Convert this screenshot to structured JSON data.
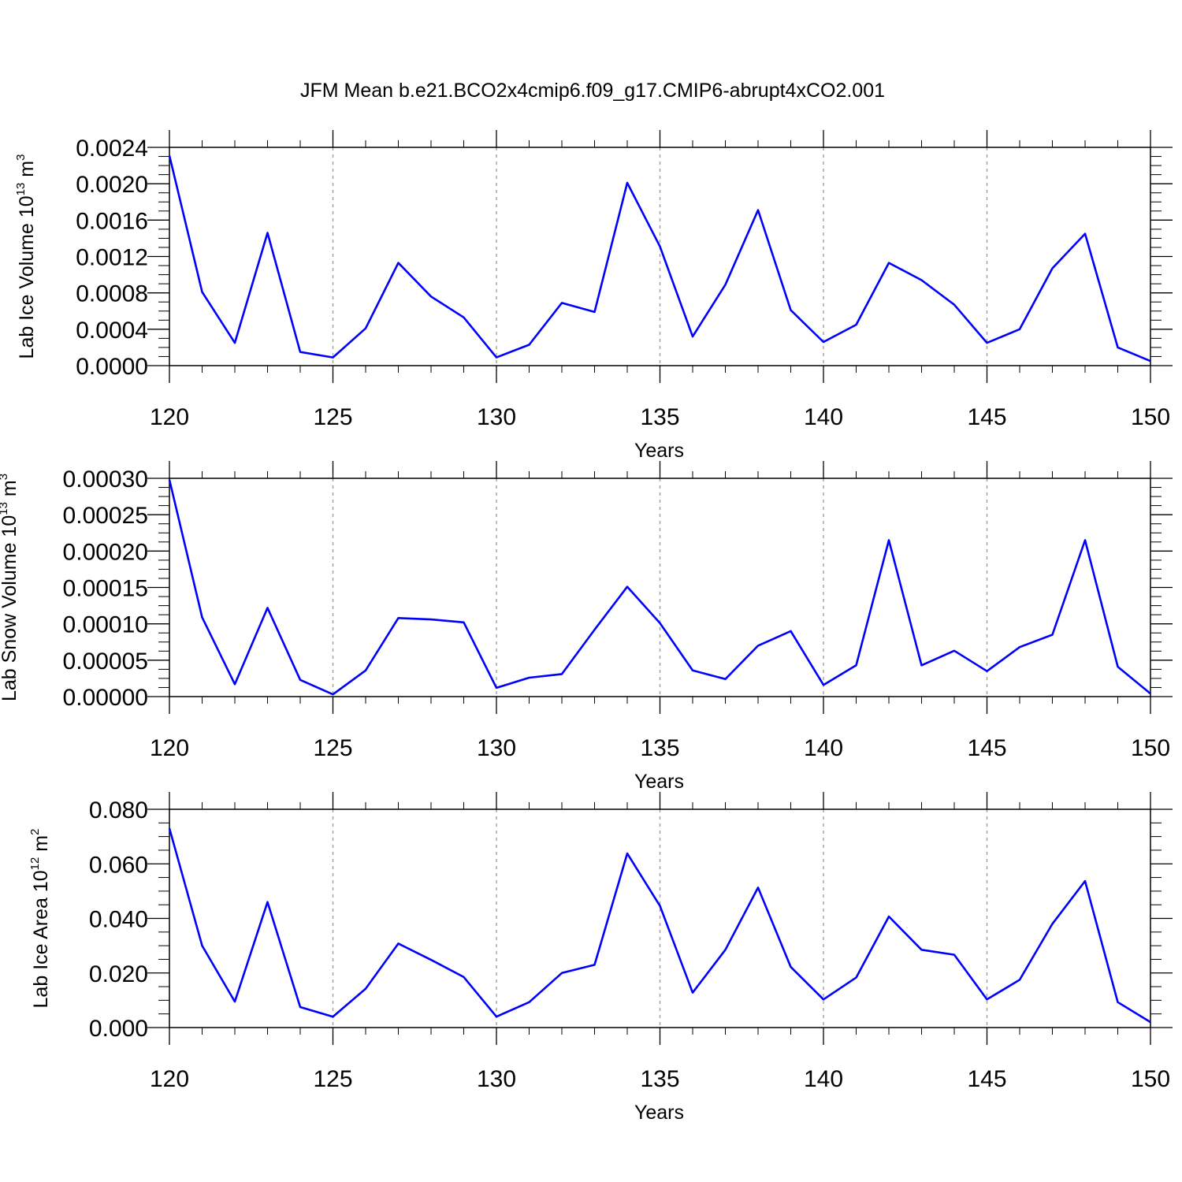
{
  "title": "JFM Mean b.e21.BCO2x4cmip6.f09_g17.CMIP6-abrupt4xCO2.001",
  "colors": {
    "series": "#0000ff",
    "grid": "#999999",
    "axis": "#000000"
  },
  "chart_data": [
    {
      "type": "line",
      "ylabel": {
        "text": "Lab Ice Volume 10",
        "exp": "13",
        "unit": " m",
        "unit_exp": "3"
      },
      "xlabel": "Years",
      "xlim": [
        120,
        150
      ],
      "ylim": [
        0,
        0.0024
      ],
      "xticks": [
        120,
        125,
        130,
        135,
        140,
        145,
        150
      ],
      "yticks": [
        "0.0000",
        "0.0004",
        "0.0008",
        "0.0012",
        "0.0016",
        "0.0020",
        "0.0024"
      ],
      "grid": "vertical dashed at major x ticks",
      "x": [
        120,
        121,
        122,
        123,
        124,
        125,
        126,
        127,
        128,
        129,
        130,
        131,
        132,
        133,
        134,
        135,
        136,
        137,
        138,
        139,
        140,
        141,
        142,
        143,
        144,
        145,
        146,
        147,
        148,
        149,
        150
      ],
      "series": [
        {
          "values": [
            0.00231,
            0.00081,
            0.00025,
            0.00146,
            0.00015,
            9e-05,
            0.00041,
            0.00113,
            0.00076,
            0.00053,
            9e-05,
            0.00023,
            0.00069,
            0.00059,
            0.00201,
            0.00131,
            0.00032,
            0.00089,
            0.00171,
            0.00061,
            0.00026,
            0.00045,
            0.00113,
            0.00094,
            0.00067,
            0.00025,
            0.0004,
            0.00107,
            0.00145,
            0.0002,
            5e-05
          ]
        }
      ]
    },
    {
      "type": "line",
      "ylabel": {
        "text": "Lab Snow Volume 10",
        "exp": "13",
        "unit": " m",
        "unit_exp": "3"
      },
      "xlabel": "Years",
      "xlim": [
        120,
        150
      ],
      "ylim": [
        0,
        0.0003
      ],
      "xticks": [
        120,
        125,
        130,
        135,
        140,
        145,
        150
      ],
      "yticks": [
        "0.00000",
        "0.00005",
        "0.00010",
        "0.00015",
        "0.00020",
        "0.00025",
        "0.00030"
      ],
      "grid": "vertical dashed at major x ticks",
      "x": [
        120,
        121,
        122,
        123,
        124,
        125,
        126,
        127,
        128,
        129,
        130,
        131,
        132,
        133,
        134,
        135,
        136,
        137,
        138,
        139,
        140,
        141,
        142,
        143,
        144,
        145,
        146,
        147,
        148,
        149,
        150
      ],
      "series": [
        {
          "values": [
            0.000298,
            0.000109,
            1.7e-05,
            0.000122,
            2.3e-05,
            3e-06,
            3.6e-05,
            0.000108,
            0.000106,
            0.000102,
            1.2e-05,
            2.6e-05,
            3.1e-05,
            9.2e-05,
            0.000151,
            0.000101,
            3.6e-05,
            2.4e-05,
            7e-05,
            9e-05,
            1.6e-05,
            4.3e-05,
            0.000215,
            4.3e-05,
            6.3e-05,
            3.5e-05,
            6.8e-05,
            8.5e-05,
            0.000215,
            4.1e-05,
            4e-06
          ]
        }
      ]
    },
    {
      "type": "line",
      "ylabel": {
        "text": "Lab Ice Area 10",
        "exp": "12",
        "unit": " m",
        "unit_exp": "2"
      },
      "xlabel": "Years",
      "xlim": [
        120,
        150
      ],
      "ylim": [
        0,
        0.08
      ],
      "xticks": [
        120,
        125,
        130,
        135,
        140,
        145,
        150
      ],
      "yticks": [
        "0.000",
        "0.020",
        "0.040",
        "0.060",
        "0.080"
      ],
      "grid": "vertical dashed at major x ticks",
      "x": [
        120,
        121,
        122,
        123,
        124,
        125,
        126,
        127,
        128,
        129,
        130,
        131,
        132,
        133,
        134,
        135,
        136,
        137,
        138,
        139,
        140,
        141,
        142,
        143,
        144,
        145,
        146,
        147,
        148,
        149,
        150
      ],
      "series": [
        {
          "values": [
            0.073,
            0.03,
            0.0095,
            0.046,
            0.0075,
            0.004,
            0.0142,
            0.0308,
            0.0248,
            0.0185,
            0.004,
            0.0093,
            0.02,
            0.023,
            0.0638,
            0.0446,
            0.0128,
            0.0285,
            0.0513,
            0.0222,
            0.0103,
            0.0183,
            0.0407,
            0.0285,
            0.0267,
            0.0103,
            0.0175,
            0.038,
            0.0537,
            0.0093,
            0.002
          ]
        }
      ]
    }
  ]
}
